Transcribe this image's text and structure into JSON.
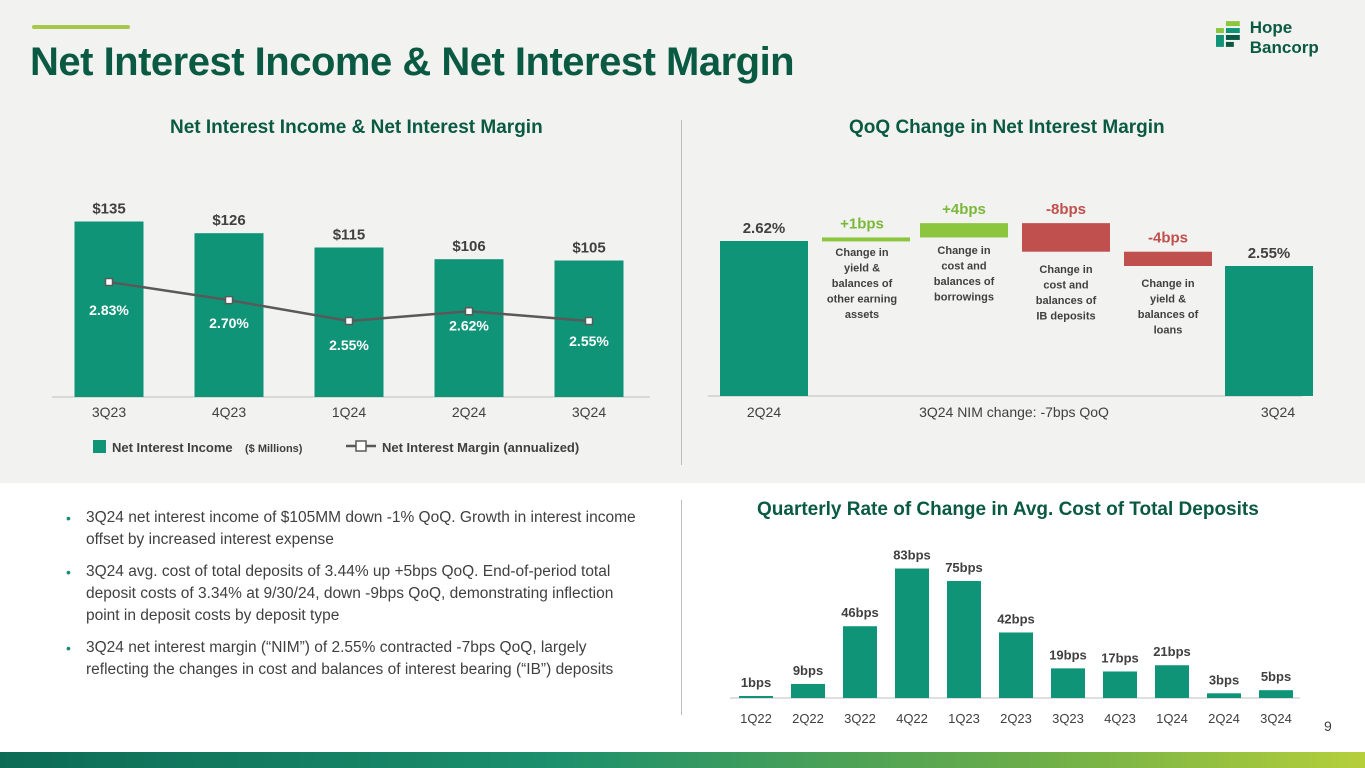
{
  "header": {
    "title": "Net Interest Income & Net Interest Margin",
    "logo_text": "Hope Bancorp",
    "page_number": "9"
  },
  "colors": {
    "primary_green": "#0a5a43",
    "bar_teal": "#0f9478",
    "light_green": "#8cc63f",
    "red": "#c0504d",
    "line_gray": "#595959"
  },
  "chart_data": [
    {
      "id": "nii_nim",
      "type": "bar",
      "title": "Net Interest Income & Net Interest Margin",
      "categories": [
        "3Q23",
        "4Q23",
        "1Q24",
        "2Q24",
        "3Q24"
      ],
      "series": [
        {
          "name": "Net Interest Income ($ Millions)",
          "type": "bar",
          "values": [
            135,
            126,
            115,
            106,
            105
          ],
          "labels": [
            "$135",
            "$126",
            "$115",
            "$106",
            "$105"
          ]
        },
        {
          "name": "Net Interest Margin (annualized)",
          "type": "line",
          "values": [
            2.83,
            2.7,
            2.55,
            2.62,
            2.55
          ],
          "labels": [
            "2.83%",
            "2.70%",
            "2.55%",
            "2.62%",
            "2.55%"
          ]
        }
      ],
      "legend": [
        {
          "label": "Net Interest Income",
          "sublabel": "($ Millions)"
        },
        {
          "label": "Net Interest Margin (annualized)"
        }
      ]
    },
    {
      "id": "nim_waterfall",
      "type": "bar",
      "title": "QoQ Change in Net Interest Margin",
      "start": {
        "label": "2Q24",
        "value": 2.62,
        "text": "2.62%"
      },
      "end": {
        "label": "3Q24",
        "value": 2.55,
        "text": "2.55%"
      },
      "steps": [
        {
          "delta_bps": 1,
          "text": "+1bps",
          "desc": [
            "Change in",
            "yield &",
            "balances of",
            "other earning",
            "assets"
          ]
        },
        {
          "delta_bps": 4,
          "text": "+4bps",
          "desc": [
            "Change in",
            "cost and",
            "balances of",
            "borrowings"
          ]
        },
        {
          "delta_bps": -8,
          "text": "-8bps",
          "desc": [
            "Change in",
            "cost and",
            "balances of",
            "IB deposits"
          ]
        },
        {
          "delta_bps": -4,
          "text": "-4bps",
          "desc": [
            "Change in",
            "yield &",
            "balances of",
            "loans"
          ]
        }
      ],
      "center_label": "3Q24 NIM change: -7bps QoQ"
    },
    {
      "id": "deposit_cost_change",
      "type": "bar",
      "title": "Quarterly Rate of Change in Avg. Cost of Total Deposits",
      "categories": [
        "1Q22",
        "2Q22",
        "3Q22",
        "4Q22",
        "1Q23",
        "2Q23",
        "3Q23",
        "4Q23",
        "1Q24",
        "2Q24",
        "3Q24"
      ],
      "values": [
        1,
        9,
        46,
        83,
        75,
        42,
        19,
        17,
        21,
        3,
        5
      ],
      "labels": [
        "1bps",
        "9bps",
        "46bps",
        "83bps",
        "75bps",
        "42bps",
        "19bps",
        "17bps",
        "21bps",
        "3bps",
        "5bps"
      ],
      "unit": "bps"
    }
  ],
  "bullets": [
    "3Q24 net interest income of $105MM down -1% QoQ. Growth in interest income offset by increased interest expense",
    "3Q24 avg. cost of total deposits of 3.44% up +5bps QoQ. End-of-period total deposit costs of 3.34% at 9/30/24, down -9bps QoQ, demonstrating inflection point in deposit costs by deposit type",
    "3Q24 net interest margin (“NIM”) of 2.55% contracted -7bps QoQ, largely reflecting the changes in cost and balances of interest bearing (“IB”) deposits"
  ]
}
